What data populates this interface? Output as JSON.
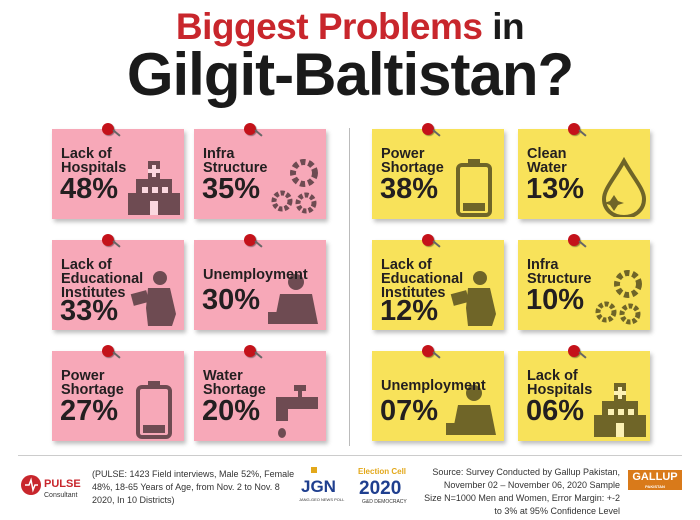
{
  "header": {
    "title_red": "Biggest Problems",
    "title_black": " in",
    "subtitle": "Gilgit-Baltistan?"
  },
  "chart_data": [
    {
      "type": "table",
      "note_color": "#f7a8b8",
      "categories": [
        "Lack of Hospitals",
        "Infra Structure",
        "Lack of Educational Institutes",
        "Unemployment",
        "Power Shortage",
        "Water Shortage"
      ],
      "values": [
        48,
        35,
        33,
        30,
        27,
        20
      ],
      "labels": [
        "48%",
        "35%",
        "33%",
        "30%",
        "27%",
        "20%"
      ],
      "icons": [
        "hospital-icon",
        "gears-icon",
        "student-reading-icon",
        "worried-man-icon",
        "battery-icon",
        "faucet-icon"
      ]
    },
    {
      "type": "table",
      "note_color": "#f8e25a",
      "categories": [
        "Power Shortage",
        "Clean Water",
        "Lack of Educational Institutes",
        "Infra Structure",
        "Unemployment",
        "Lack of Hospitals"
      ],
      "values": [
        38,
        13,
        12,
        10,
        7,
        6
      ],
      "labels": [
        "38%",
        "13%",
        "12%",
        "10%",
        "07%",
        "06%"
      ],
      "icons": [
        "battery-icon",
        "water-drop-icon",
        "student-reading-icon",
        "gears-icon",
        "worried-man-icon",
        "hospital-icon"
      ]
    }
  ],
  "notes_left": [
    {
      "label": "Lack of\nHospitals",
      "value": "48%",
      "icon": "hospital-icon"
    },
    {
      "label": "Infra\nStructure",
      "value": "35%",
      "icon": "gears-icon"
    },
    {
      "label": "Lack of\nEducational\nInstitutes",
      "value": "33%",
      "icon": "student-reading-icon"
    },
    {
      "label": "Unemployment",
      "value": "30%",
      "icon": "worried-man-icon"
    },
    {
      "label": "Power\nShortage",
      "value": "27%",
      "icon": "battery-icon"
    },
    {
      "label": "Water\nShortage",
      "value": "20%",
      "icon": "faucet-icon"
    }
  ],
  "notes_right": [
    {
      "label": "Power\nShortage",
      "value": "38%",
      "icon": "battery-icon"
    },
    {
      "label": "Clean\nWater",
      "value": "13%",
      "icon": "water-drop-icon"
    },
    {
      "label": "Lack of\nEducational\nInstitutes",
      "value": "12%",
      "icon": "student-reading-icon"
    },
    {
      "label": "Infra\nStructure",
      "value": "10%",
      "icon": "gears-icon"
    },
    {
      "label": "Unemployment",
      "value": "07%",
      "icon": "worried-man-icon"
    },
    {
      "label": "Lack of\nHospitals",
      "value": "06%",
      "icon": "hospital-icon"
    }
  ],
  "footer": {
    "pulse_name": "PULSE",
    "pulse_sub": "Consultant",
    "pulse_note": "(PULSE: 1423 Field interviews, Male 52%, Female 48%, 18-65 Years of Age, from Nov. 2 to Nov. 8 2020, In 10 Districts)",
    "jang_logo_text": "JGN",
    "jang_sub": "JANG-GEO NEWS POLL",
    "election_cell_top": "Election Cell",
    "election_cell_year": "2020",
    "election_cell_bottom": "G&D DEMOCRACY",
    "source": "Source: Survey Conducted by Gallup Pakistan, November 02 – November 06, 2020 Sample Size N=1000 Men and Women, Error Margin: +-2 to 3% at 95% Confidence Level",
    "gallup": "GALLUP",
    "gallup_sub": "PAKISTAN"
  },
  "colors": {
    "title_red": "#c8262c",
    "pink_note": "#f7a8b8",
    "yellow_note": "#f8e25a",
    "pin": "#c4121a"
  }
}
